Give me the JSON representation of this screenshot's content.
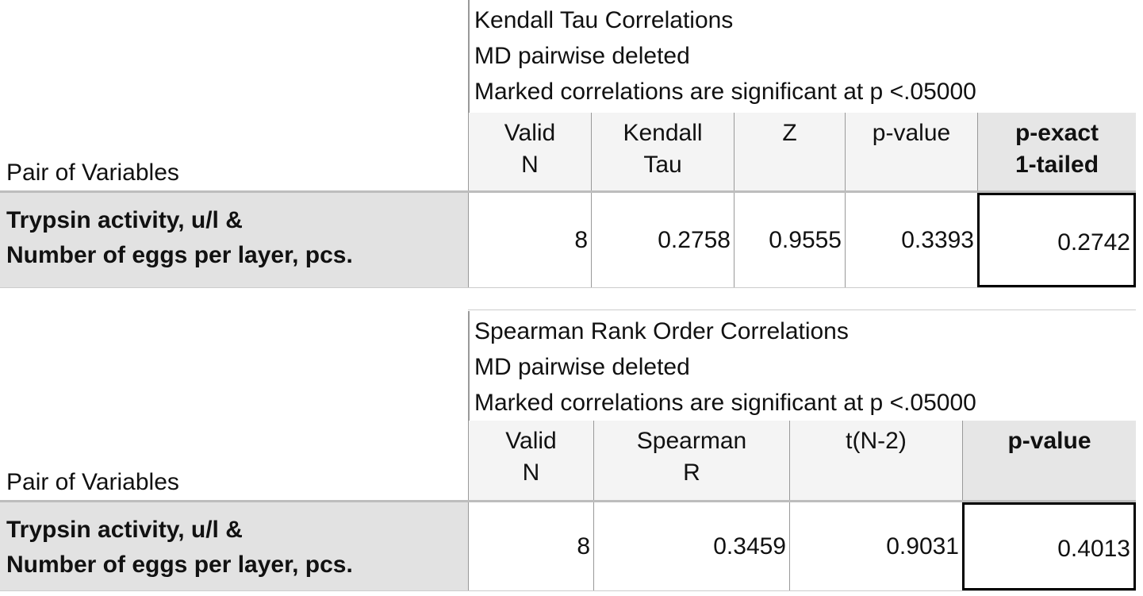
{
  "tables": [
    {
      "caption": [
        "Kendall Tau Correlations",
        "MD pairwise deleted",
        "Marked correlations are significant at p <.05000"
      ],
      "row_header": "Pair of Variables",
      "columns": [
        [
          "Valid",
          "N"
        ],
        [
          "Kendall",
          "Tau"
        ],
        [
          "Z"
        ],
        [
          "p-value"
        ],
        [
          "p-exact",
          "1-tailed"
        ]
      ],
      "rows": [
        {
          "label": [
            "Trypsin activity, u/l &",
            "Number of eggs per layer, pcs."
          ],
          "values": [
            8,
            0.2758,
            0.9555,
            0.3393,
            0.2742
          ]
        }
      ]
    },
    {
      "caption": [
        "Spearman Rank Order Correlations",
        "MD pairwise deleted",
        "Marked correlations are significant at p <.05000"
      ],
      "row_header": "Pair of Variables",
      "columns": [
        [
          "Valid",
          "N"
        ],
        [
          "Spearman",
          "R"
        ],
        [
          "t(N-2)"
        ],
        [
          "p-value"
        ]
      ],
      "rows": [
        {
          "label": [
            "Trypsin activity, u/l &",
            "Number of eggs per layer, pcs."
          ],
          "values": [
            8,
            0.3459,
            0.9031,
            0.4013
          ]
        }
      ]
    }
  ]
}
